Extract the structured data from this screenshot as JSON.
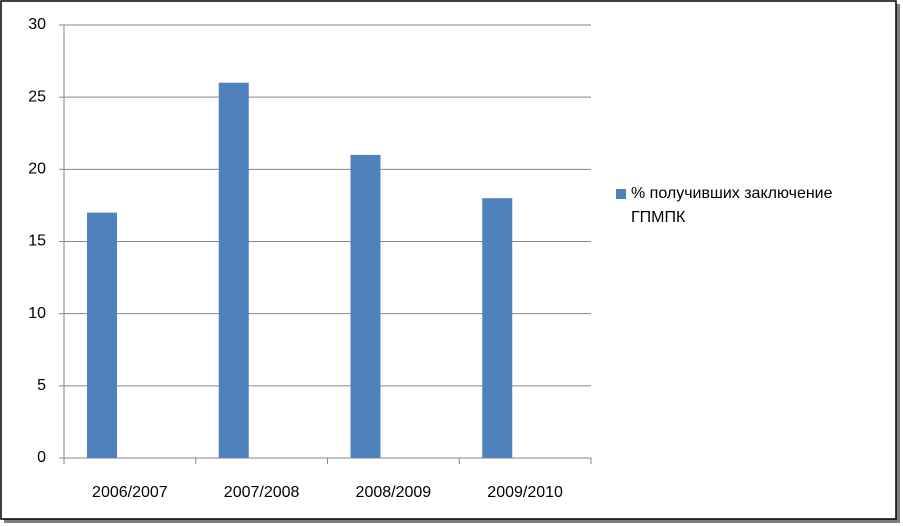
{
  "chart_data": {
    "type": "bar",
    "categories": [
      "2006/2007",
      "2007/2008",
      "2008/2009",
      "2009/2010"
    ],
    "series": [
      {
        "name": "% получивших заключение ГПМПК",
        "color": "#4f81bd",
        "values": [
          17,
          26,
          21,
          18
        ]
      }
    ],
    "ylim": [
      0,
      30
    ],
    "yticks": [
      0,
      5,
      10,
      15,
      20,
      25,
      30
    ],
    "grid": true,
    "legend": "right"
  }
}
